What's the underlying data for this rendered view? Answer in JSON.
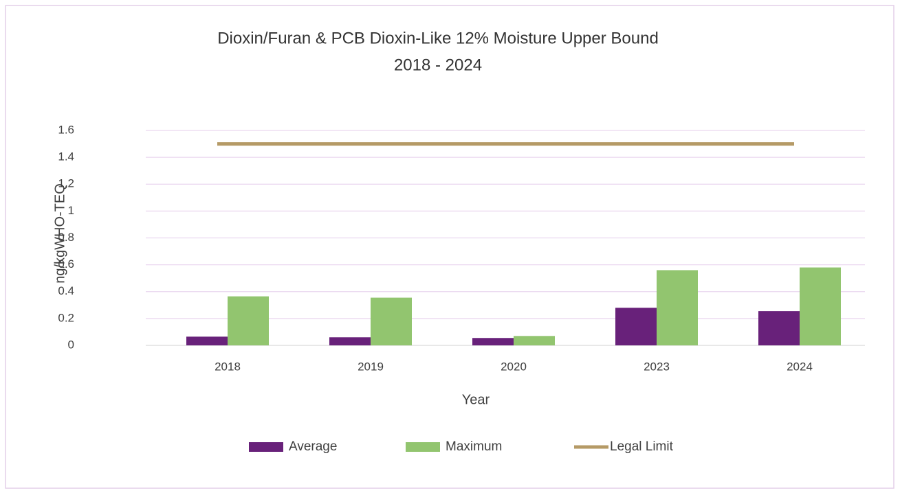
{
  "chart_data": {
    "type": "bar",
    "title": "Dioxin/Furan & PCB Dioxin-Like 12% Moisture Upper Bound",
    "subtitle": "2018 - 2024",
    "x_label": "Year",
    "y_label": "ng/kgWHO-TEQ",
    "categories": [
      "2018",
      "2019",
      "2020",
      "2023",
      "2024"
    ],
    "series": [
      {
        "name": "Average",
        "color": "#68217a",
        "type": "bar",
        "values": [
          0.065,
          0.06,
          0.055,
          0.28,
          0.255
        ]
      },
      {
        "name": "Maximum",
        "color": "#92c56f",
        "type": "bar",
        "values": [
          0.365,
          0.355,
          0.07,
          0.56,
          0.58
        ]
      },
      {
        "name": "Legal Limit",
        "color": "#b59a66",
        "type": "line",
        "values": [
          1.5,
          1.5,
          1.5,
          1.5,
          1.5
        ]
      }
    ],
    "ylim": [
      0,
      1.6
    ],
    "yticks": [
      0,
      0.2,
      0.4,
      0.6,
      0.8,
      1,
      1.2,
      1.4,
      1.6
    ],
    "grid": true,
    "legend": "bottom"
  }
}
